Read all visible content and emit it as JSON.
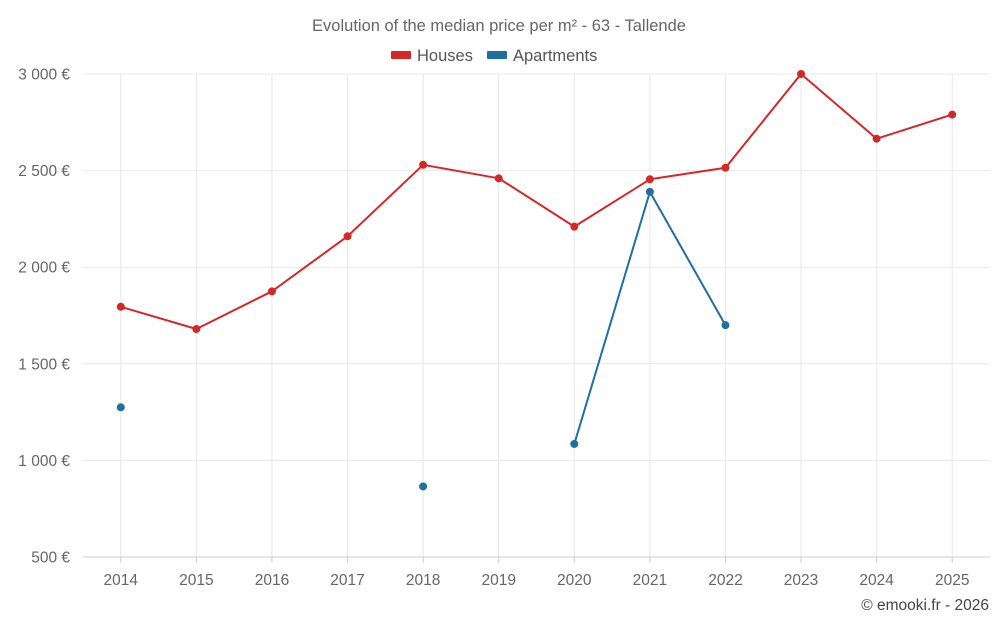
{
  "chart_data": {
    "type": "line",
    "title": "Evolution of the median price per m² - 63 - Tallende",
    "categories": [
      "2014",
      "2015",
      "2016",
      "2017",
      "2018",
      "2019",
      "2020",
      "2021",
      "2022",
      "2023",
      "2024",
      "2025"
    ],
    "series": [
      {
        "name": "Houses",
        "color": "#d62728",
        "values": [
          1795,
          1680,
          1875,
          2160,
          2530,
          2460,
          2210,
          2455,
          2515,
          3000,
          2665,
          2790
        ]
      },
      {
        "name": "Apartments",
        "color": "#1f6fa3",
        "values": [
          1275,
          null,
          null,
          null,
          865,
          null,
          1085,
          2390,
          1700,
          null,
          null,
          null
        ]
      }
    ],
    "yticks": [
      "500 €",
      "1 000 €",
      "1 500 €",
      "2 000 €",
      "2 500 €",
      "3 000 €"
    ],
    "ytick_values": [
      500,
      1000,
      1500,
      2000,
      2500,
      3000
    ],
    "ylim": [
      500,
      3000
    ],
    "grid": true,
    "legend_position": "top-center",
    "xlabel": "",
    "ylabel": ""
  },
  "credit": "© emooki.fr - 2026"
}
